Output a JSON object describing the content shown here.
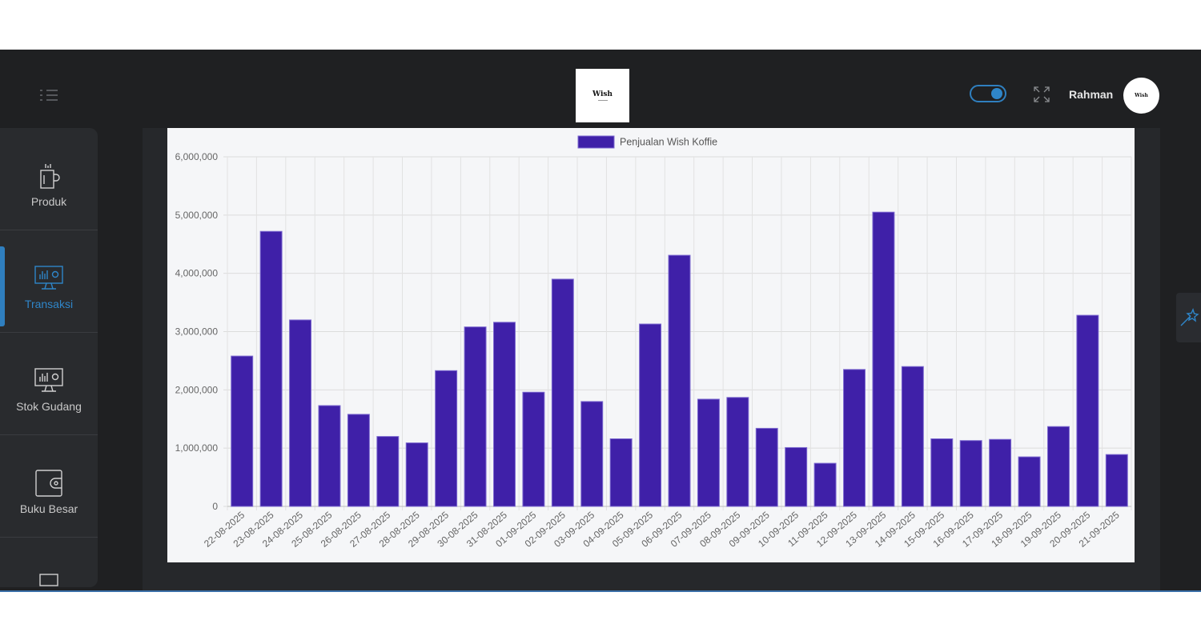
{
  "header": {
    "logo_text": "Wish",
    "username": "Rahman",
    "avatar_text": "Wish"
  },
  "sidebar": {
    "items": [
      {
        "label": "Produk",
        "icon": "coffee-cup-icon",
        "active": false
      },
      {
        "label": "Transaksi",
        "icon": "monitor-chart-icon",
        "active": true
      },
      {
        "label": "Stok Gudang",
        "icon": "monitor-chart-icon",
        "active": false
      },
      {
        "label": "Buku Besar",
        "icon": "wallet-icon",
        "active": false
      }
    ]
  },
  "colors": {
    "bar": "#3f20a8",
    "bar_border": "#7d6ad0",
    "accent": "#2f86c9",
    "background": "#1f2022"
  },
  "chart_data": {
    "type": "bar",
    "legend": "Penjualan Wish Koffie",
    "ylim": [
      0,
      6000000
    ],
    "yticks": [
      "0",
      "1,000,000",
      "2,000,000",
      "3,000,000",
      "4,000,000",
      "5,000,000",
      "6,000,000"
    ],
    "categories": [
      "22-08-2025",
      "23-08-2025",
      "24-08-2025",
      "25-08-2025",
      "26-08-2025",
      "27-08-2025",
      "28-08-2025",
      "29-08-2025",
      "30-08-2025",
      "31-08-2025",
      "01-09-2025",
      "02-09-2025",
      "03-09-2025",
      "04-09-2025",
      "05-09-2025",
      "06-09-2025",
      "07-09-2025",
      "08-09-2025",
      "09-09-2025",
      "10-09-2025",
      "11-09-2025",
      "12-09-2025",
      "13-09-2025",
      "14-09-2025",
      "15-09-2025",
      "16-09-2025",
      "17-09-2025",
      "18-09-2025",
      "19-09-2025",
      "20-09-2025",
      "21-09-2025"
    ],
    "values": [
      2580000,
      4720000,
      3200000,
      1730000,
      1580000,
      1200000,
      1090000,
      2330000,
      3080000,
      3160000,
      1960000,
      3900000,
      1800000,
      1160000,
      3130000,
      4310000,
      1840000,
      1870000,
      1340000,
      1010000,
      740000,
      2350000,
      5050000,
      2400000,
      1160000,
      1130000,
      1150000,
      850000,
      1370000,
      3280000,
      890000
    ]
  }
}
